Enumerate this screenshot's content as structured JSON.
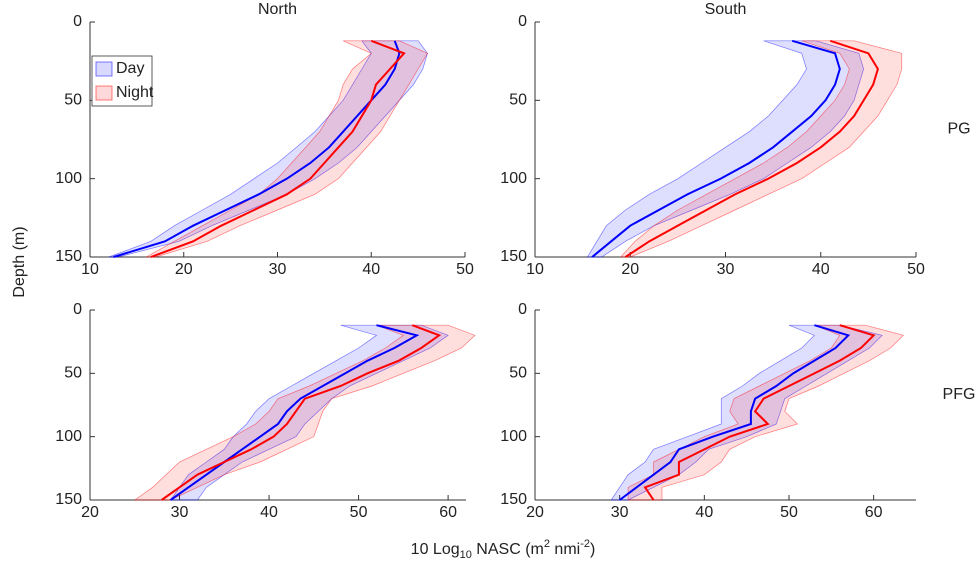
{
  "ylabel": "Depth (m)",
  "xlabel": [
    "10 Log",
    "10",
    " NASC (m",
    "2",
    " nmi",
    "-2",
    ")"
  ],
  "chart_data": [
    {
      "type": "line",
      "title": "North",
      "legend": "upper left",
      "y_reversed": true,
      "xlim": [
        10,
        50
      ],
      "xticks": [
        10,
        20,
        30,
        40,
        50
      ],
      "ylim": [
        0,
        150
      ],
      "yticks": [
        0,
        50,
        100,
        150
      ],
      "y": [
        12,
        20,
        30,
        40,
        50,
        60,
        70,
        80,
        90,
        100,
        110,
        120,
        130,
        140,
        150
      ],
      "series": [
        {
          "name": "Day",
          "color": "#0000ff",
          "values": [
            42.5,
            43,
            42.5,
            41.5,
            40,
            38.5,
            37,
            35.5,
            33.5,
            31,
            28,
            24.5,
            21,
            18,
            12.5
          ],
          "lower": [
            39,
            40,
            39,
            38,
            37,
            35.5,
            34,
            32,
            30,
            27.5,
            25,
            22,
            19,
            16.5,
            12
          ],
          "upper": [
            45,
            46,
            45.5,
            44.5,
            43,
            41.5,
            40,
            38.5,
            36.5,
            34,
            31,
            27,
            23,
            19.5,
            13
          ]
        },
        {
          "name": "Night",
          "color": "#ff0000",
          "values": [
            40,
            43.5,
            42,
            40.5,
            40,
            39,
            38,
            36.5,
            35,
            33.5,
            31,
            27.5,
            24,
            21,
            16.5
          ],
          "lower": [
            37,
            40,
            38,
            37,
            36.5,
            35.5,
            34.5,
            33,
            31.5,
            30,
            28,
            25,
            22,
            19,
            16
          ],
          "upper": [
            43,
            46,
            45,
            44,
            43,
            42,
            41,
            39.5,
            38,
            36.5,
            34,
            30,
            26,
            22.5,
            17
          ]
        }
      ]
    },
    {
      "type": "line",
      "title": "South",
      "row_label": "PG",
      "y_reversed": true,
      "xlim": [
        10,
        50
      ],
      "xticks": [
        10,
        20,
        30,
        40,
        50
      ],
      "ylim": [
        0,
        150
      ],
      "yticks": [
        0,
        50,
        100,
        150
      ],
      "y": [
        12,
        20,
        30,
        40,
        50,
        60,
        70,
        80,
        90,
        100,
        110,
        120,
        130,
        140,
        150
      ],
      "series": [
        {
          "name": "Day",
          "color": "#0000ff",
          "values": [
            37,
            41.5,
            42,
            41.5,
            40.5,
            39,
            37,
            35,
            32.5,
            29.5,
            26,
            23,
            20,
            18,
            16
          ],
          "lower": [
            34,
            38,
            38.5,
            37.5,
            36,
            34.5,
            32.5,
            30,
            27.5,
            25,
            22,
            19.5,
            17.5,
            16.5,
            15.5
          ],
          "upper": [
            39.5,
            44,
            44.5,
            44,
            43.5,
            42.5,
            41,
            39,
            36.5,
            34,
            30.5,
            26.5,
            22.5,
            19.5,
            17
          ]
        },
        {
          "name": "Night",
          "color": "#ff0000",
          "values": [
            41,
            45,
            46,
            45.5,
            44.5,
            43.5,
            42,
            40,
            37.5,
            34.5,
            31,
            28,
            25,
            22,
            19.5
          ],
          "lower": [
            38,
            42,
            43,
            42.5,
            41.5,
            40,
            38.5,
            36.5,
            34,
            31,
            28,
            25,
            22.5,
            20.5,
            19
          ],
          "upper": [
            43.5,
            48.5,
            48.5,
            48,
            47,
            46,
            44.5,
            43,
            40.5,
            38,
            34.5,
            31,
            27.5,
            24,
            20
          ]
        }
      ]
    },
    {
      "type": "line",
      "y_reversed": true,
      "xlim": [
        20,
        62
      ],
      "xticks": [
        20,
        30,
        40,
        50,
        60
      ],
      "ylim": [
        0,
        150
      ],
      "yticks": [
        0,
        50,
        100,
        150
      ],
      "y": [
        12,
        20,
        30,
        40,
        50,
        60,
        70,
        80,
        90,
        100,
        110,
        120,
        130,
        140,
        150
      ],
      "series": [
        {
          "name": "Day",
          "color": "#0000ff",
          "values": [
            52,
            56.5,
            54,
            51,
            48.5,
            46,
            43.5,
            42,
            41,
            39,
            37,
            35,
            33,
            31,
            29
          ],
          "lower": [
            48,
            52,
            50,
            47.5,
            45,
            42.5,
            40,
            38.5,
            37.5,
            36,
            35,
            33,
            31,
            30,
            29
          ],
          "upper": [
            57,
            60,
            58,
            55,
            52,
            49,
            47,
            45.5,
            44,
            43,
            40,
            37,
            35,
            33,
            32
          ]
        },
        {
          "name": "Night",
          "color": "#ff0000",
          "values": [
            56,
            59,
            57,
            54.5,
            51,
            48,
            44,
            43,
            42,
            40.5,
            38,
            35,
            32,
            30,
            28
          ],
          "lower": [
            52,
            55,
            53,
            50.5,
            47.5,
            44.5,
            41,
            40,
            38.5,
            36,
            33,
            30,
            28.5,
            27,
            25
          ],
          "upper": [
            60,
            63,
            61.5,
            58.5,
            55,
            51.5,
            47,
            46,
            45.5,
            45,
            42,
            39,
            35,
            32,
            29
          ]
        }
      ]
    },
    {
      "type": "line",
      "row_label": "PFG",
      "y_reversed": true,
      "xlim": [
        20,
        65
      ],
      "xticks": [
        20,
        30,
        40,
        50,
        60
      ],
      "ylim": [
        0,
        150
      ],
      "yticks": [
        0,
        50,
        100,
        150
      ],
      "y": [
        12,
        20,
        30,
        40,
        50,
        60,
        70,
        80,
        90,
        100,
        110,
        120,
        130,
        140,
        150
      ],
      "series": [
        {
          "name": "Day",
          "color": "#0000ff",
          "values": [
            53,
            57,
            55.5,
            53,
            50.5,
            48.5,
            46,
            45.5,
            45.5,
            41,
            37,
            36,
            34,
            32,
            30
          ],
          "lower": [
            50,
            53,
            51.5,
            49,
            46.5,
            44.5,
            42,
            42,
            42,
            38,
            34,
            33,
            31,
            30,
            29
          ],
          "upper": [
            56,
            61,
            59.5,
            57,
            54.5,
            52,
            49.5,
            49,
            48.5,
            45,
            40.5,
            39,
            37,
            34,
            31
          ]
        },
        {
          "name": "Night",
          "color": "#ff0000",
          "values": [
            56,
            60,
            58.5,
            56,
            53,
            50,
            47,
            46,
            47.5,
            43,
            40,
            37,
            37,
            33,
            34
          ],
          "lower": [
            53,
            56,
            55,
            52.5,
            49.5,
            46.5,
            43.5,
            43,
            44,
            40,
            37,
            34,
            34,
            31,
            31
          ],
          "upper": [
            59,
            63.5,
            62,
            59.5,
            56.5,
            53.5,
            50,
            49.5,
            51,
            46,
            43,
            42,
            40,
            35,
            35
          ]
        }
      ]
    }
  ]
}
